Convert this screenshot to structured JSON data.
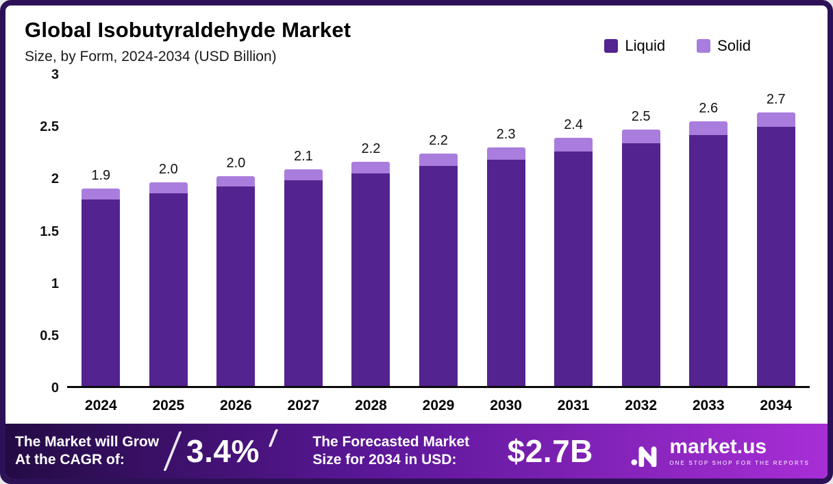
{
  "chart_data": {
    "type": "bar",
    "stacked": true,
    "title": "Global Isobutyraldehyde Market",
    "subtitle": "Size, by Form, 2024-2034 (USD Billion)",
    "categories": [
      "2024",
      "2025",
      "2026",
      "2027",
      "2028",
      "2029",
      "2030",
      "2031",
      "2032",
      "2033",
      "2034"
    ],
    "series": [
      {
        "name": "Liquid",
        "color": "#53238f",
        "values": [
          1.8,
          1.86,
          1.92,
          1.98,
          2.05,
          2.12,
          2.18,
          2.26,
          2.34,
          2.42,
          2.5
        ]
      },
      {
        "name": "Solid",
        "color": "#a97ddd",
        "values": [
          0.1,
          0.1,
          0.1,
          0.11,
          0.11,
          0.12,
          0.12,
          0.13,
          0.13,
          0.13,
          0.14
        ]
      }
    ],
    "total_labels": [
      "1.9",
      "2.0",
      "2.0",
      "2.1",
      "2.2",
      "2.2",
      "2.3",
      "2.4",
      "2.5",
      "2.6",
      "2.7"
    ],
    "yticks": [
      0,
      0.5,
      1,
      1.5,
      2,
      2.5,
      3
    ],
    "ytick_labels": [
      "0",
      "0.5",
      "1",
      "1.5",
      "2",
      "2.5",
      "3"
    ],
    "ylim": [
      0,
      3
    ],
    "grid": false,
    "legend_position": "top-right"
  },
  "footer": {
    "cagr_label_line1": "The Market will Grow",
    "cagr_label_line2": "At the CAGR of:",
    "cagr_value": "3.4%",
    "forecast_label_line1": "The Forecasted Market",
    "forecast_label_line2": "Size for 2034 in USD:",
    "forecast_value": "$2.7B",
    "brand_name": "market.us",
    "brand_tagline": "ONE STOP SHOP FOR THE REPORTS"
  },
  "colors": {
    "border": "#2d1157",
    "liquid": "#53238f",
    "solid": "#a97ddd",
    "footer_gradient_start": "#230b44",
    "footer_gradient_end": "#a82ed6"
  }
}
